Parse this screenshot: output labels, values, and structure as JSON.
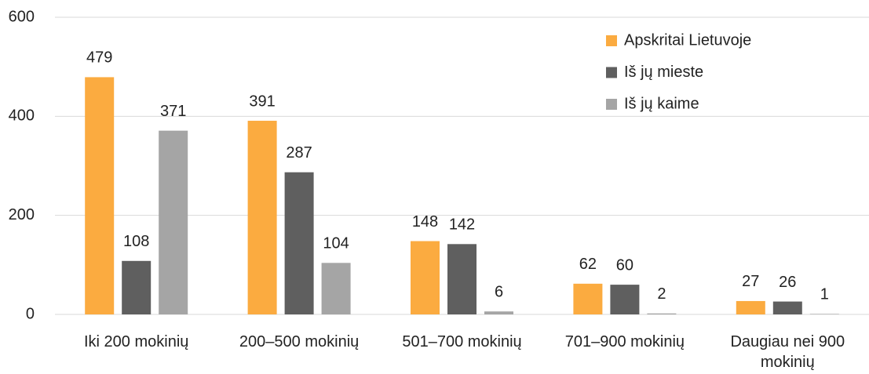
{
  "chart_data": {
    "type": "bar",
    "categories": [
      "Iki 200 mokinių",
      "200–500 mokinių",
      "501–700 mokinių",
      "701–900 mokinių",
      "Daugiau nei 900 mokinių"
    ],
    "series": [
      {
        "name": "Apskritai Lietuvoje",
        "color": "#fbab40",
        "values": [
          479,
          391,
          148,
          62,
          27
        ]
      },
      {
        "name": "Iš jų mieste",
        "color": "#5f5f5f",
        "values": [
          108,
          287,
          142,
          60,
          26
        ]
      },
      {
        "name": "Iš jų kaime",
        "color": "#a5a5a5",
        "values": [
          371,
          104,
          6,
          2,
          1
        ]
      }
    ],
    "ylim": [
      0,
      600
    ],
    "yticks": [
      0,
      200,
      400,
      600
    ],
    "grid": true,
    "legend": "top-right"
  }
}
